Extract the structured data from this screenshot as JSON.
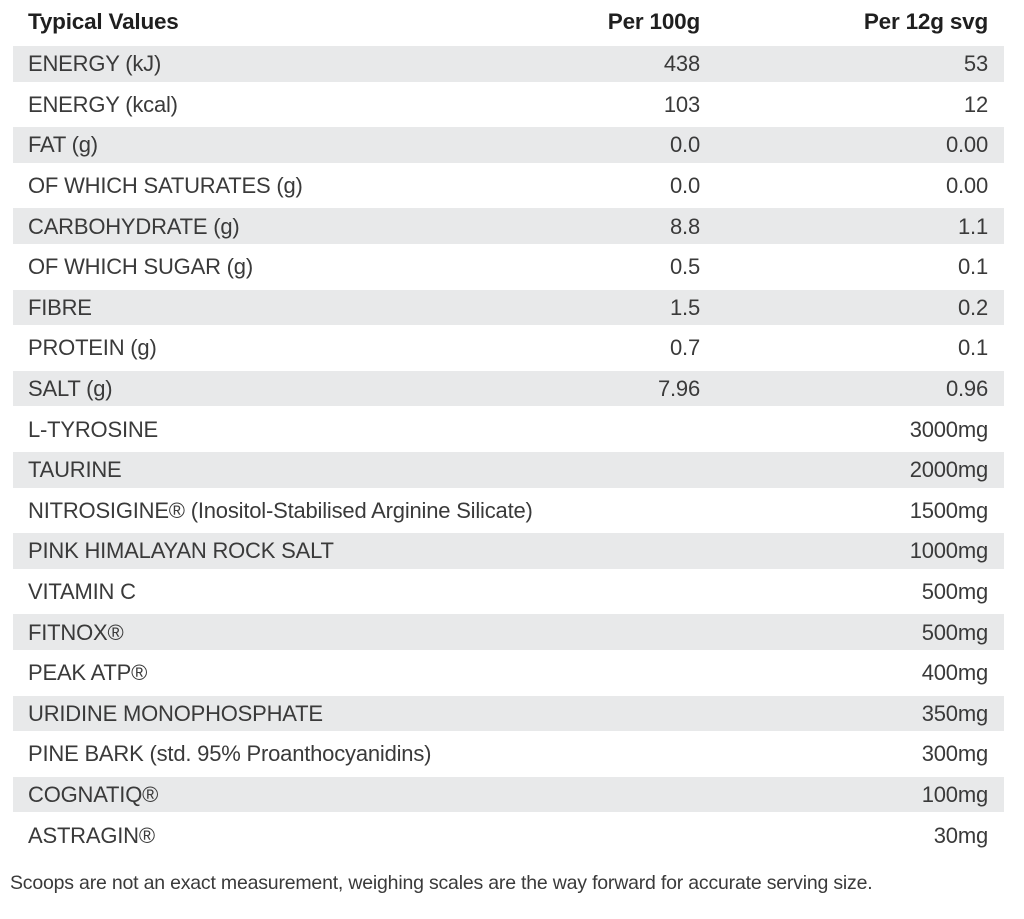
{
  "table": {
    "headers": {
      "label": "Typical Values",
      "per_100g": "Per 100g",
      "per_serving": "Per 12g svg"
    },
    "rows": [
      {
        "label": "ENERGY (kJ)",
        "per_100g": "438",
        "per_serving": "53"
      },
      {
        "label": "ENERGY (kcal)",
        "per_100g": "103",
        "per_serving": "12"
      },
      {
        "label": "FAT (g)",
        "per_100g": "0.0",
        "per_serving": "0.00"
      },
      {
        "label": "OF WHICH SATURATES (g)",
        "per_100g": "0.0",
        "per_serving": "0.00"
      },
      {
        "label": "CARBOHYDRATE (g)",
        "per_100g": "8.8",
        "per_serving": "1.1"
      },
      {
        "label": "OF WHICH SUGAR (g)",
        "per_100g": "0.5",
        "per_serving": "0.1"
      },
      {
        "label": "FIBRE",
        "per_100g": "1.5",
        "per_serving": "0.2"
      },
      {
        "label": "PROTEIN (g)",
        "per_100g": "0.7",
        "per_serving": "0.1"
      },
      {
        "label": "SALT (g)",
        "per_100g": "7.96",
        "per_serving": "0.96"
      },
      {
        "label": "L-TYROSINE",
        "per_100g": "",
        "per_serving": "3000mg"
      },
      {
        "label": "TAURINE",
        "per_100g": "",
        "per_serving": "2000mg"
      },
      {
        "label": "NITROSIGINE® (Inositol-Stabilised Arginine Silicate)",
        "per_100g": "",
        "per_serving": "1500mg"
      },
      {
        "label": "PINK HIMALAYAN ROCK SALT",
        "per_100g": "",
        "per_serving": "1000mg"
      },
      {
        "label": "VITAMIN C",
        "per_100g": "",
        "per_serving": "500mg"
      },
      {
        "label": "FITNOX®",
        "per_100g": "",
        "per_serving": "500mg"
      },
      {
        "label": "PEAK ATP®",
        "per_100g": "",
        "per_serving": "400mg"
      },
      {
        "label": "URIDINE MONOPHOSPHATE",
        "per_100g": "",
        "per_serving": "350mg"
      },
      {
        "label": "PINE BARK (std. 95% Proanthocyanidins)",
        "per_100g": "",
        "per_serving": "300mg"
      },
      {
        "label": "COGNATIQ®",
        "per_100g": "",
        "per_serving": "100mg"
      },
      {
        "label": "ASTRAGIN®",
        "per_100g": "",
        "per_serving": "30mg"
      }
    ],
    "footnote": "Scoops are not an exact measurement, weighing scales are the way forward for accurate serving size."
  },
  "colors": {
    "row_shade": "#e8e9ea",
    "text": "#3a3a3a",
    "header_text": "#1f1f1f",
    "background": "#ffffff"
  }
}
